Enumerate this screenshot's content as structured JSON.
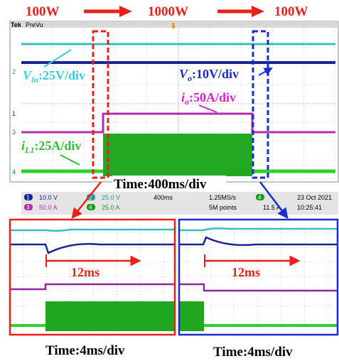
{
  "header": {
    "power_steps": [
      "100W",
      "1000W",
      "100W"
    ]
  },
  "scope": {
    "brand": "Tek",
    "mode": "PreVu",
    "channel_markers": [
      "2",
      "1",
      "3",
      "4"
    ],
    "annotations": [
      {
        "symbol": "V",
        "subscript": "in",
        "scale": ":25V/div"
      },
      {
        "symbol": "V",
        "subscript": "o",
        "scale": ":10V/div"
      },
      {
        "symbol": "i",
        "subscript": "o",
        "scale": ":50A/div"
      },
      {
        "symbol": "i",
        "subscript": "L1",
        "scale": ":25A/div"
      }
    ],
    "timebase": "Time:400ms/div",
    "status": {
      "channels": [
        {
          "id": "1",
          "scale": "10.0 V"
        },
        {
          "id": "2",
          "scale": "25.0 V"
        },
        {
          "id": "3",
          "scale": "50.0 A"
        },
        {
          "id": "4",
          "scale": "25.0 A"
        }
      ],
      "horizontal": "400ms",
      "sample_rate": "1.25MS/s",
      "record_length": "5M points",
      "trigger_channel": "4",
      "trigger_level": "11.5 A",
      "date": "23 Oct 2021",
      "time": "10:25:41"
    }
  },
  "zoom_panels": [
    {
      "duration": "12ms",
      "timebase": "Time:4ms/div"
    },
    {
      "duration": "12ms",
      "timebase": "Time:4ms/div"
    }
  ]
}
